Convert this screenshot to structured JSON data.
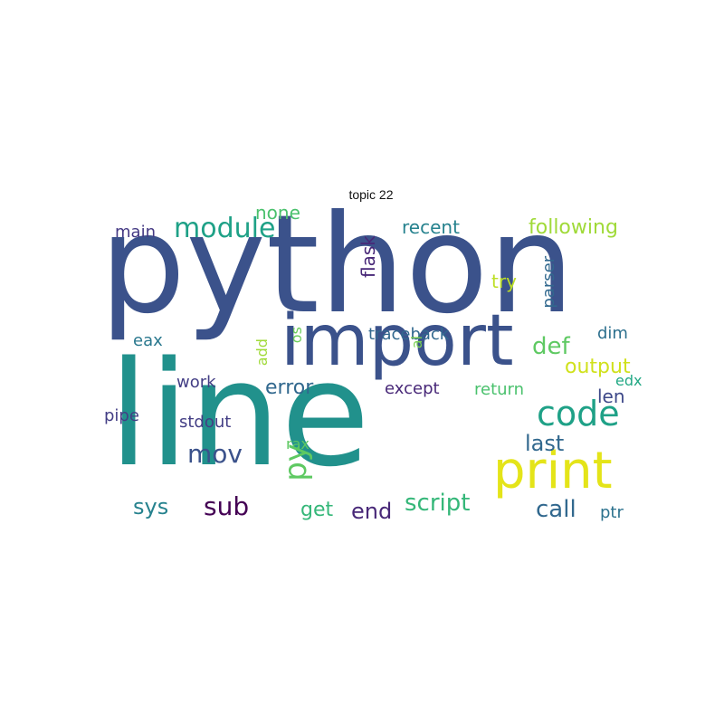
{
  "title": "topic 22",
  "words": [
    {
      "text": "python",
      "color": "#3b528b"
    },
    {
      "text": "line",
      "color": "#21918c"
    },
    {
      "text": "import",
      "color": "#3b528b"
    },
    {
      "text": "print",
      "color": "#e4e419"
    },
    {
      "text": "code",
      "color": "#1fa187"
    },
    {
      "text": "module",
      "color": "#1fa187"
    },
    {
      "text": "py",
      "color": "#5ec962"
    },
    {
      "text": "mov",
      "color": "#3b528b"
    },
    {
      "text": "sub",
      "color": "#440154"
    },
    {
      "text": "def",
      "color": "#5ec962"
    },
    {
      "text": "last",
      "color": "#31688e"
    },
    {
      "text": "call",
      "color": "#31688e"
    },
    {
      "text": "script",
      "color": "#35b779"
    },
    {
      "text": "flask",
      "color": "#482878"
    },
    {
      "text": "output",
      "color": "#d0e11c"
    },
    {
      "text": "following",
      "color": "#a0da39"
    },
    {
      "text": "error",
      "color": "#31688e"
    },
    {
      "text": "sys",
      "color": "#26828e"
    },
    {
      "text": "end",
      "color": "#482878"
    },
    {
      "text": "get",
      "color": "#35b779"
    },
    {
      "text": "none",
      "color": "#4ac16d"
    },
    {
      "text": "recent",
      "color": "#26828e"
    },
    {
      "text": "parser",
      "color": "#31688e"
    },
    {
      "text": "try",
      "color": "#bddf26"
    },
    {
      "text": "len",
      "color": "#3e4989"
    },
    {
      "text": "return",
      "color": "#4ac16d"
    },
    {
      "text": "traceback",
      "color": "#31688e"
    },
    {
      "text": "except",
      "color": "#482878"
    },
    {
      "text": "eax",
      "color": "#2a788e"
    },
    {
      "text": "work",
      "color": "#433e85"
    },
    {
      "text": "pipe",
      "color": "#433e85"
    },
    {
      "text": "stdout",
      "color": "#433e85"
    },
    {
      "text": "main",
      "color": "#443983"
    },
    {
      "text": "dim",
      "color": "#2d708e"
    },
    {
      "text": "os",
      "color": "#6ccd5a"
    },
    {
      "text": "al",
      "color": "#7ad151"
    },
    {
      "text": "add",
      "color": "#a0da39"
    },
    {
      "text": "rax",
      "color": "#5ec962"
    },
    {
      "text": "edx",
      "color": "#22a884"
    },
    {
      "text": "ptr",
      "color": "#2c728e"
    }
  ]
}
